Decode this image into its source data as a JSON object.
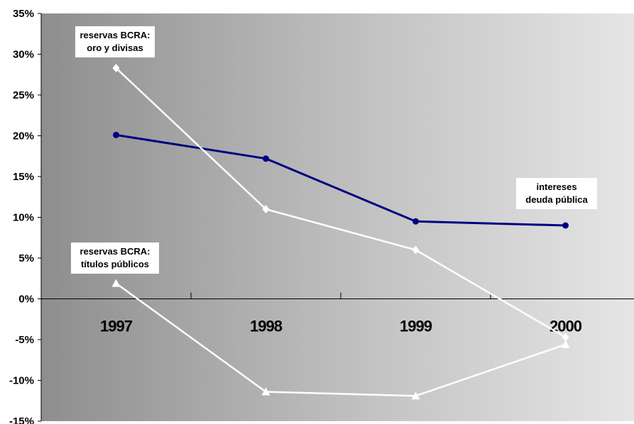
{
  "chart_data": {
    "type": "line",
    "categories": [
      "1997",
      "1998",
      "1999",
      "2000"
    ],
    "ylim": [
      -15,
      35
    ],
    "yticks": [
      "35%",
      "30%",
      "25%",
      "20%",
      "15%",
      "10%",
      "5%",
      "0%",
      "-5%",
      "-10%",
      "-15%"
    ],
    "grid": false,
    "background": "gray-to-light gradient",
    "series": [
      {
        "name": "intereses deuda pública",
        "values": [
          20.1,
          17.2,
          9.5,
          9.0
        ],
        "color": "#000080",
        "marker": "circle"
      },
      {
        "name": "reservas BCRA: oro y divisas",
        "values": [
          28.3,
          11.0,
          6.0,
          -4.7
        ],
        "color": "#ffffff",
        "marker": "diamond"
      },
      {
        "name": "reservas BCRA: títulos públicos",
        "values": [
          1.9,
          -11.4,
          -11.9,
          -5.6
        ],
        "color": "#ffffff",
        "marker": "triangle"
      }
    ],
    "annotations": [
      {
        "lines": [
          "reservas BCRA:",
          "oro y divisas"
        ]
      },
      {
        "lines": [
          "intereses",
          "deuda pública"
        ]
      },
      {
        "lines": [
          "reservas BCRA:",
          "títulos públicos"
        ]
      }
    ]
  }
}
